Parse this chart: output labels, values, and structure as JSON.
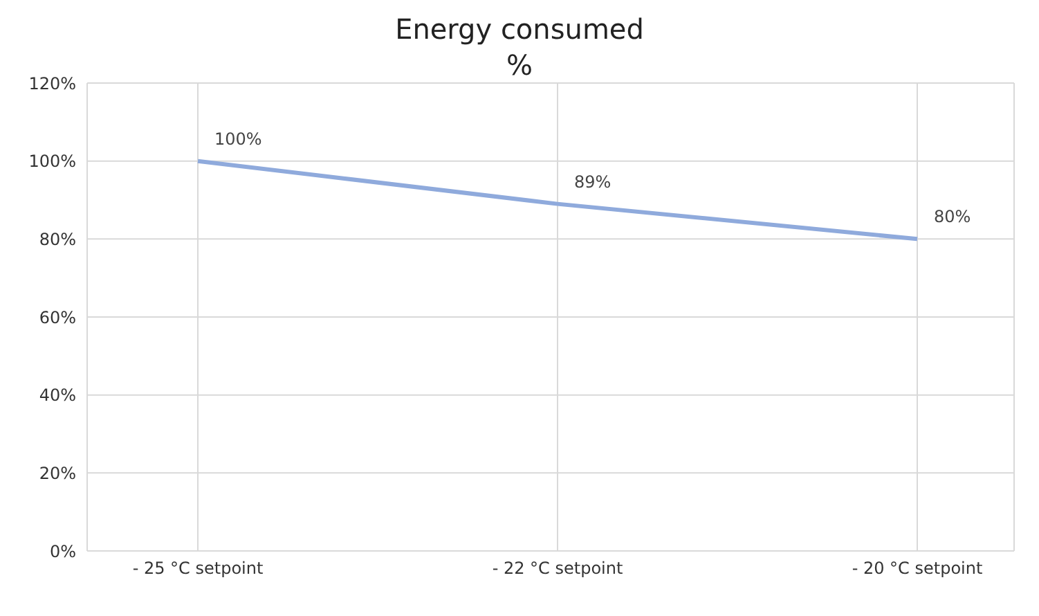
{
  "chart_data": {
    "type": "line",
    "title": "Energy consumed",
    "subtitle": "%",
    "categories": [
      "- 25 °C setpoint",
      "- 22 °C setpoint",
      "- 20 °C setpoint"
    ],
    "series": [
      {
        "color": "#8faadc",
        "values": [
          100,
          89,
          80
        ],
        "value_labels": [
          "100%",
          "89%",
          "80%"
        ]
      }
    ],
    "ylim": [
      0,
      120
    ],
    "yticks": [
      {
        "value": 0,
        "label": "0%"
      },
      {
        "value": 20,
        "label": "20%"
      },
      {
        "value": 40,
        "label": "40%"
      },
      {
        "value": 60,
        "label": "60%"
      },
      {
        "value": 80,
        "label": "80%"
      },
      {
        "value": 100,
        "label": "100%"
      },
      {
        "value": 120,
        "label": "120%"
      }
    ],
    "grid": true,
    "marker": "none",
    "line_style": "solid",
    "legend": false
  }
}
